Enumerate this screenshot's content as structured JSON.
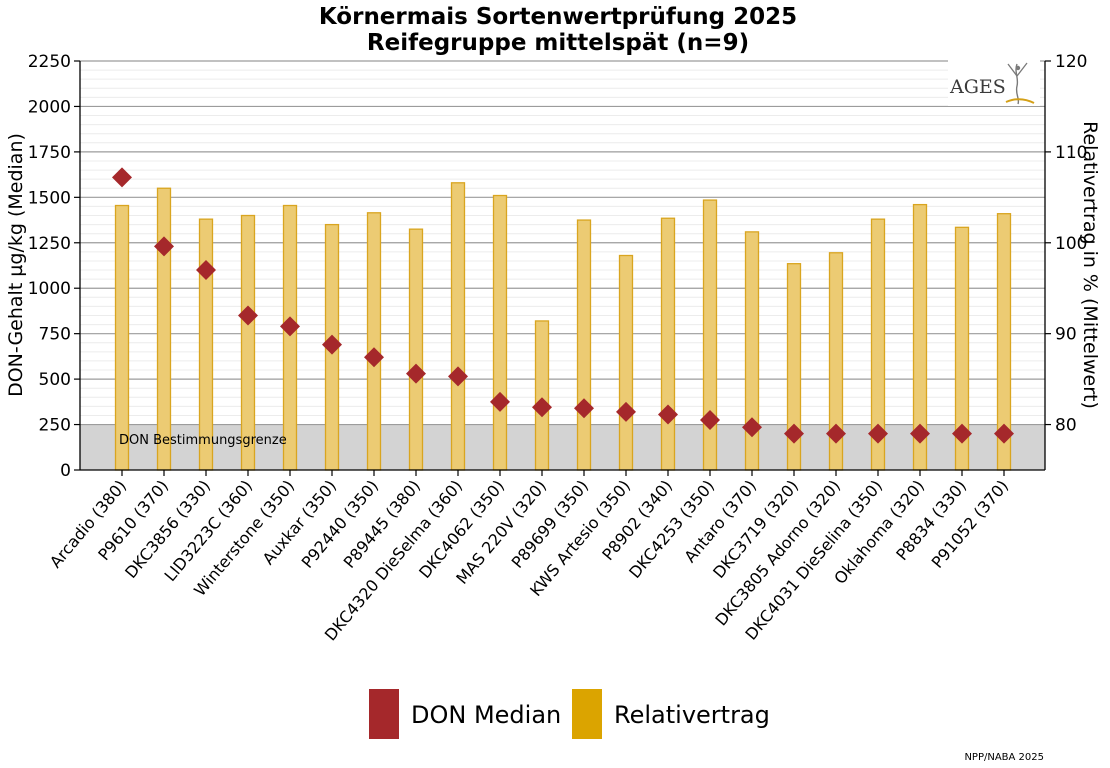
{
  "chart_data": {
    "type": "bar",
    "title": "Körnermais Sortenwertprüfung 2025",
    "subtitle": "Reifegruppe mittelspät (n=9)",
    "ylabel_left": "DON-Gehalt µg/kg (Median)",
    "ylabel_right": "Relativertrag in % (Mittelwert)",
    "ylim_left": [
      0,
      2250
    ],
    "yticks_left": [
      0,
      250,
      500,
      750,
      1000,
      1250,
      1500,
      1750,
      2000,
      2250
    ],
    "ylim_right": [
      75,
      120
    ],
    "yticks_right": [
      80,
      90,
      100,
      110,
      120
    ],
    "grid": true,
    "categories": [
      "Arcadio (380)",
      "P9610 (370)",
      "DKC3856 (330)",
      "LID3223C (360)",
      "Winterstone (350)",
      "Auxkar (350)",
      "P92440 (350)",
      "P89445 (380)",
      "DKC4320 DieSelma (360)",
      "DKC4062 (350)",
      "MAS 220V (320)",
      "P89699 (350)",
      "KWS Artesio (350)",
      "P8902 (340)",
      "DKC4253 (350)",
      "Antaro (370)",
      "DKC3719 (320)",
      "DKC3805 Adorno (320)",
      "DKC4031 DieSelina (350)",
      "Oklahoma (320)",
      "P8834 (330)",
      "P91052 (370)"
    ],
    "series": [
      {
        "name": "DON Median",
        "axis": "left",
        "kind": "diamond",
        "color": "#a5282b",
        "values": [
          1610,
          1230,
          1100,
          850,
          790,
          690,
          620,
          530,
          515,
          375,
          345,
          340,
          320,
          305,
          275,
          235,
          200,
          200,
          200,
          200,
          200,
          200
        ]
      },
      {
        "name": "Relativertrag",
        "axis": "right",
        "kind": "bar",
        "color": "#e3b02c",
        "values": [
          104.1,
          106.0,
          102.6,
          103.0,
          104.1,
          102.0,
          103.3,
          101.5,
          106.6,
          105.2,
          91.4,
          102.5,
          98.6,
          102.7,
          104.7,
          101.2,
          97.7,
          98.9,
          102.6,
          104.2,
          101.7,
          103.2
        ]
      }
    ],
    "annotations": {
      "limit_label": "DON Bestimmungsgrenze",
      "limit_value": 250
    },
    "legend_position": "bottom-center"
  },
  "logo": {
    "text": "AGES"
  },
  "footer": {
    "text": "NPP/NABA 2025"
  },
  "colors": {
    "bar_fill": "#eccb73",
    "bar_stroke": "#d9a520",
    "diamond": "#a5282b",
    "legend_bar": "#dba400",
    "limit_band": "#d3d3d3",
    "grid_major": "#9c9c9c",
    "grid_minor": "#ececec"
  }
}
